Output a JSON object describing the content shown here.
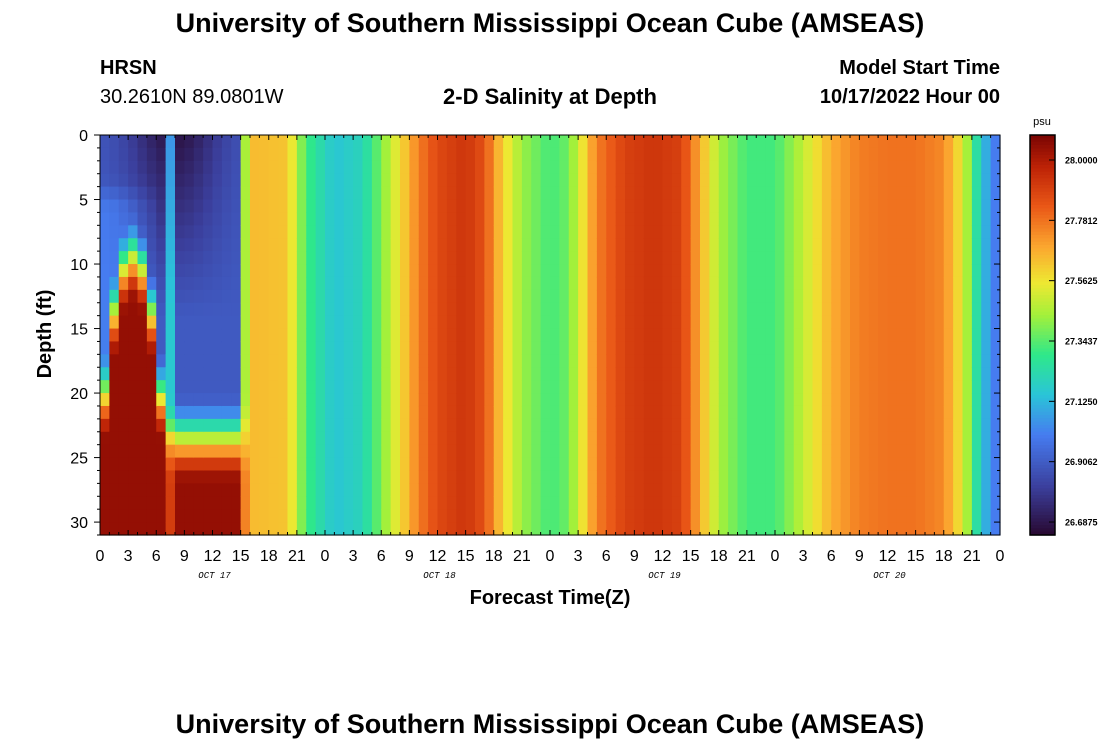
{
  "header": {
    "title": "University of Southern Mississippi Ocean Cube (AMSEAS)",
    "station": "HRSN",
    "coordinates": "30.2610N  89.0801W",
    "subtitle": "2-D Salinity at Depth",
    "model_start_label": "Model Start Time",
    "model_start_value": "10/17/2022 Hour 00"
  },
  "footer": {
    "title": "University of Southern Mississippi Ocean Cube (AMSEAS)"
  },
  "chart_data": {
    "type": "heatmap",
    "title": "2-D Salinity at Depth",
    "xlabel": "Forecast Time(Z)",
    "ylabel": "Depth (ft)",
    "x_range_hours": [
      0,
      96
    ],
    "x_step_hours": 1,
    "x_tick_labels": [
      "0",
      "3",
      "6",
      "9",
      "12",
      "15",
      "18",
      "21",
      "0",
      "3",
      "6",
      "9",
      "12",
      "15",
      "18",
      "21",
      "0",
      "3",
      "6",
      "9",
      "12",
      "15",
      "18",
      "21",
      "0",
      "3",
      "6",
      "9",
      "12",
      "15",
      "18",
      "21",
      "0"
    ],
    "x_tick_step_hours": 3,
    "day_labels": [
      {
        "label": "OCT 17",
        "center_hour": 12
      },
      {
        "label": "OCT 18",
        "center_hour": 36
      },
      {
        "label": "OCT 19",
        "center_hour": 60
      },
      {
        "label": "OCT 20",
        "center_hour": 84
      }
    ],
    "ylim": [
      0,
      31
    ],
    "y_ticks": [
      0,
      5,
      10,
      15,
      20,
      25,
      30
    ],
    "y_step_ft": 1,
    "colorbar": {
      "unit": "psu",
      "min": 26.6875,
      "max": 28.0,
      "tick_values": [
        28.0,
        27.78125,
        27.5625,
        27.34375,
        27.125,
        26.90625,
        26.6875
      ],
      "tick_labels": [
        "28.0000",
        "27.7812",
        "27.5625",
        "27.3437",
        "27.1250",
        "26.9062",
        "26.6875"
      ]
    },
    "salinity_profile": {
      "description": "Vertically uniform columns after hour 15; layered structure before.",
      "column_anchors_hour_psu": [
        [
          0,
          26.97
        ],
        [
          15,
          27.6
        ],
        [
          20,
          27.58
        ],
        [
          22,
          27.3
        ],
        [
          25,
          27.15
        ],
        [
          28,
          27.2
        ],
        [
          31,
          27.45
        ],
        [
          34,
          27.7
        ],
        [
          36,
          27.8
        ],
        [
          39,
          27.85
        ],
        [
          41,
          27.78
        ],
        [
          43,
          27.55
        ],
        [
          45,
          27.4
        ],
        [
          48,
          27.3
        ],
        [
          50,
          27.35
        ],
        [
          53,
          27.7
        ],
        [
          56,
          27.82
        ],
        [
          59,
          27.85
        ],
        [
          62,
          27.82
        ],
        [
          64,
          27.62
        ],
        [
          66,
          27.42
        ],
        [
          69,
          27.3
        ],
        [
          72,
          27.3
        ],
        [
          75,
          27.45
        ],
        [
          78,
          27.62
        ],
        [
          81,
          27.7
        ],
        [
          84,
          27.72
        ],
        [
          87,
          27.72
        ],
        [
          90,
          27.68
        ],
        [
          92,
          27.5
        ],
        [
          94,
          27.15
        ],
        [
          96,
          26.97
        ]
      ],
      "surface_low_psu": 26.72,
      "deep_high_psu": 27.96,
      "upper_water_psu": 26.92
    }
  }
}
